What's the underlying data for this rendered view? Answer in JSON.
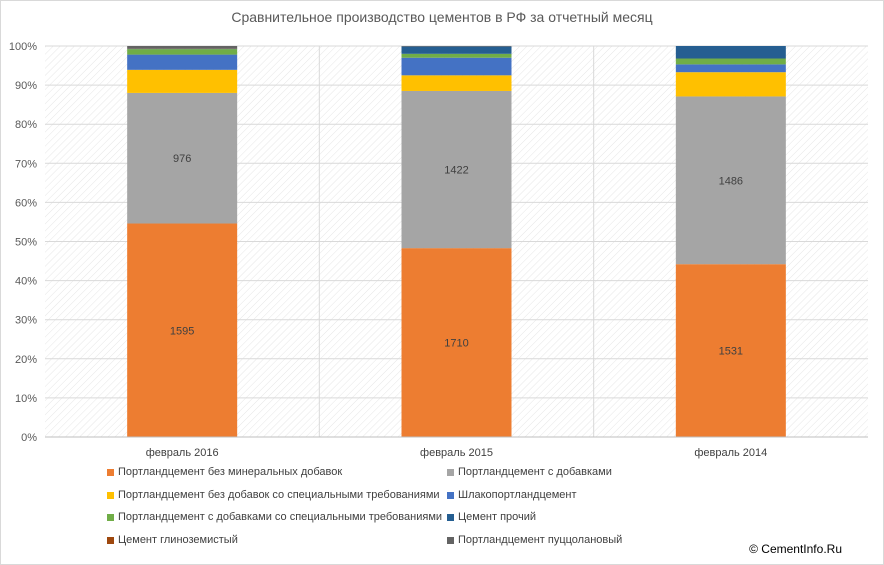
{
  "chart_data": {
    "type": "bar",
    "stacked": "percent",
    "title": "Сравнительное производство цементов в РФ за отчетный месяц",
    "categories": [
      "февраль 2016",
      "февраль 2015",
      "февраль 2014"
    ],
    "ylim": [
      0,
      100
    ],
    "y_ticks": [
      "0%",
      "10%",
      "20%",
      "30%",
      "40%",
      "50%",
      "60%",
      "70%",
      "80%",
      "90%",
      "100%"
    ],
    "grid": true,
    "legend_position": "bottom",
    "series": [
      {
        "name": "Портландцемент без минеральных добавок",
        "color": "#ED7D31",
        "values": [
          54.6,
          48.3,
          44.2
        ],
        "labels": [
          "1595",
          "1710",
          "1531"
        ]
      },
      {
        "name": "Портландцемент с добавками",
        "color": "#A5A5A5",
        "values": [
          33.4,
          40.2,
          42.9
        ],
        "labels": [
          "976",
          "1422",
          "1486"
        ]
      },
      {
        "name": "Портландцемент без добавок со специальными требованиями",
        "color": "#FFC000",
        "values": [
          5.9,
          4.0,
          6.2
        ],
        "labels": [
          "",
          "",
          ""
        ]
      },
      {
        "name": "Шлакопортландцемент",
        "color": "#4472C4",
        "values": [
          3.9,
          4.5,
          2.0
        ],
        "labels": [
          "",
          "",
          ""
        ]
      },
      {
        "name": "Портландцемент с добавками со специальными требованиями",
        "color": "#70AD47",
        "values": [
          1.4,
          1.0,
          1.5
        ],
        "labels": [
          "",
          "",
          ""
        ]
      },
      {
        "name": "Цемент прочий",
        "color": "#255E91",
        "values": [
          0.1,
          1.9,
          3.2
        ],
        "labels": [
          "",
          "",
          ""
        ]
      },
      {
        "name": "Цемент глиноземистый",
        "color": "#9E480E",
        "values": [
          0.05,
          0.05,
          0.0
        ],
        "labels": [
          "",
          "",
          ""
        ]
      },
      {
        "name": "Портландцемент пуццолановый",
        "color": "#636363",
        "values": [
          0.65,
          0.05,
          0.0
        ],
        "labels": [
          "",
          "",
          ""
        ]
      }
    ]
  },
  "copyright": "© CementInfo.Ru"
}
